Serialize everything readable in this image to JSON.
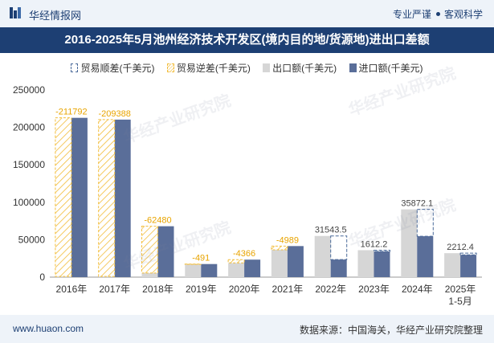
{
  "header": {
    "brand": "华经情报网",
    "tag1": "专业严谨",
    "tag2": "客观科学"
  },
  "title": "2016-2025年5月池州经济技术开发区(境内目的地/货源地)进出口差额",
  "legend": {
    "surplus": "贸易顺差(千美元)",
    "deficit": "贸易逆差(千美元)",
    "export": "出口额(千美元)",
    "import": "进口额(千美元)"
  },
  "watermark": "华经产业研究院",
  "footer": {
    "url": "www.huaon.com",
    "source": "数据来源：中国海关，华经产业研究院整理"
  },
  "colors": {
    "export": "#d6d6d6",
    "import": "#5a6e99",
    "deficit": "#f2bd3a",
    "surplus": "#4a6a9a"
  },
  "chart_data": {
    "type": "bar",
    "categories": [
      "2016年",
      "2017年",
      "2018年",
      "2019年",
      "2020年",
      "2021年",
      "2022年",
      "2023年",
      "2024年",
      "2025年\n1-5月"
    ],
    "series": [
      {
        "name": "出口额(千美元)",
        "values": [
          1000,
          1000,
          5500,
          17000,
          19000,
          36500,
          55000,
          36000,
          90500,
          32000
        ]
      },
      {
        "name": "进口额(千美元)",
        "values": [
          212792,
          210388,
          67980,
          17491,
          23366,
          41489,
          23456,
          34388,
          54628,
          29788
        ]
      }
    ],
    "balance_labels": [
      "-211792",
      "-209388",
      "-62480",
      "-491",
      "-4366",
      "-4989",
      "31543.5",
      "1612.2",
      "35872.1",
      "2212.4"
    ],
    "balance_type": [
      "deficit",
      "deficit",
      "deficit",
      "deficit",
      "deficit",
      "deficit",
      "surplus",
      "surplus",
      "surplus",
      "surplus"
    ],
    "y_ticks": [
      "0",
      "50000",
      "100000",
      "150000",
      "200000",
      "250000"
    ],
    "ylim": [
      0,
      250000
    ]
  }
}
